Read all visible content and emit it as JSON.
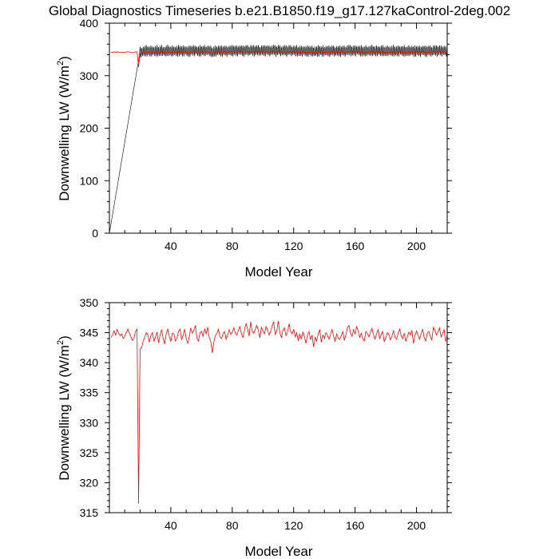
{
  "figure_title": "Global Diagnostics Timeseries b.e21.B1850.f19_g17.127kaControl-2deg.002",
  "chart_data": [
    {
      "type": "line",
      "title": "Global Diagnostics Timeseries b.e21.B1850.f19_g17.127kaControl-2deg.002",
      "xlabel": "Model Year",
      "ylabel": "Downwelling LW (W/m",
      "ylabel_sup": "2",
      "ylabel_close": ")",
      "xlim": [
        0,
        220
      ],
      "ylim": [
        0,
        400
      ],
      "xticks": [
        40,
        80,
        120,
        160,
        200
      ],
      "yticks": [
        0,
        100,
        200,
        300,
        400
      ],
      "series": [
        {
          "color": "#000000",
          "kind": "monthly",
          "description_values": {
            "ramp_start": [
              0,
              0
            ],
            "ramp_end": [
              19.5,
              338
            ],
            "seasonal_range": [
              338,
              357
            ]
          }
        },
        {
          "color": "#ff0000",
          "kind": "annual_mean",
          "reference": "annual"
        }
      ]
    },
    {
      "type": "line",
      "title": "",
      "xlabel": "Model Year",
      "ylabel": "Downwelling LW (W/m",
      "ylabel_sup": "2",
      "ylabel_close": ")",
      "xlim": [
        0,
        220
      ],
      "ylim": [
        315,
        350
      ],
      "xticks": [
        40,
        80,
        120,
        160,
        200
      ],
      "yticks": [
        315,
        320,
        325,
        330,
        335,
        340,
        345,
        350
      ],
      "series": [
        {
          "color": "#ff0000",
          "kind": "annual_mean",
          "x_start": 1,
          "values": [
            344.2,
            344.6,
            345.3,
            344.6,
            345.5,
            344.9,
            344.5,
            344.8,
            344.0,
            344.4,
            345.0,
            345.6,
            344.9,
            344.3,
            343.7,
            344.1,
            345.2,
            345.6,
            316.5,
            342.3,
            342.5,
            343.6,
            344.2,
            345.0,
            344.7,
            343.4,
            344.5,
            345.0,
            343.6,
            344.2,
            345.1,
            343.3,
            344.6,
            345.5,
            344.0,
            343.1,
            344.8,
            345.6,
            344.4,
            343.5,
            344.9,
            344.8,
            343.6,
            344.1,
            345.2,
            345.6,
            343.8,
            344.5,
            345.6,
            344.0,
            343.2,
            344.3,
            345.8,
            344.9,
            345.4,
            346.2,
            344.1,
            343.6,
            345.0,
            345.2,
            344.4,
            345.6,
            344.8,
            345.9,
            344.2,
            343.5,
            341.6,
            343.4,
            344.5,
            344.9,
            345.6,
            344.3,
            344.0,
            344.8,
            345.2,
            343.9,
            344.6,
            345.5,
            344.7,
            345.0,
            345.8,
            344.9,
            344.6,
            345.4,
            346.0,
            344.8,
            344.2,
            345.5,
            346.5,
            345.6,
            344.4,
            346.8,
            345.2,
            344.9,
            345.6,
            346.2,
            345.4,
            344.1,
            345.9,
            345.3,
            344.8,
            346.0,
            345.5,
            344.6,
            345.2,
            346.1,
            346.8,
            344.7,
            345.3,
            346.9,
            345.0,
            344.2,
            345.4,
            345.8,
            344.5,
            345.1,
            346.5,
            345.2,
            344.8,
            345.6,
            344.3,
            345.0,
            343.6,
            344.8,
            343.9,
            345.1,
            344.4,
            343.2,
            344.6,
            345.2,
            343.8,
            344.6,
            342.6,
            344.2,
            343.6,
            344.8,
            345.5,
            343.4,
            344.6,
            344.0,
            345.0,
            344.5,
            343.9,
            344.7,
            345.6,
            344.4,
            343.5,
            344.8,
            344.1,
            343.9,
            344.5,
            345.2,
            343.7,
            344.6,
            345.8,
            346.2,
            345.0,
            344.4,
            345.5,
            344.8,
            346.0,
            345.3,
            344.2,
            344.9,
            344.0,
            343.6,
            345.2,
            344.8,
            344.3,
            345.1,
            345.7,
            344.6,
            343.9,
            344.8,
            345.5,
            344.0,
            344.6,
            345.2,
            343.5,
            344.1,
            345.0,
            344.7,
            343.8,
            344.4,
            345.3,
            344.2,
            343.9,
            344.8,
            345.6,
            344.5,
            344.0,
            344.9,
            343.6,
            344.3,
            345.1,
            344.6,
            345.4,
            343.2,
            344.5,
            345.3,
            344.6,
            343.9,
            344.8,
            345.6,
            344.2,
            343.6,
            344.9,
            345.2,
            344.4,
            343.8,
            345.9,
            345.4,
            344.6,
            345.1,
            345.8,
            344.3,
            344.9,
            345.5,
            343.5,
            344.6
          ]
        }
      ]
    }
  ]
}
